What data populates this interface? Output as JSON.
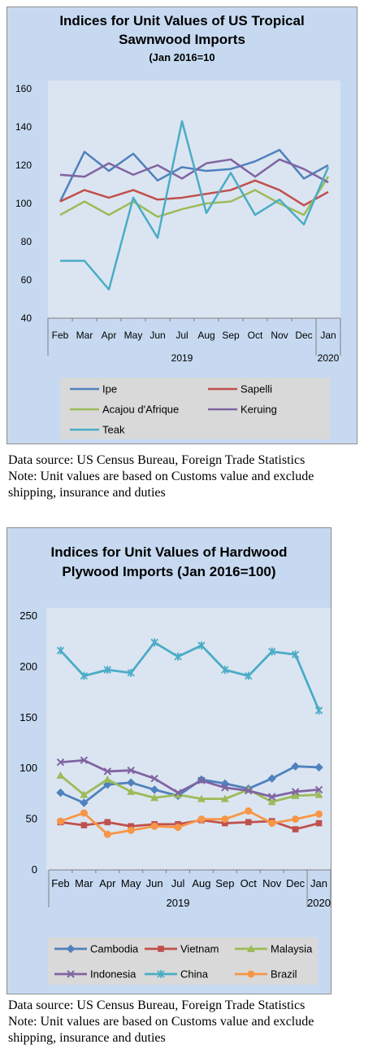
{
  "chart_data": [
    {
      "type": "line",
      "title": "Indices for Unit Values of US Tropical Sawnwood Imports",
      "subtitle": "(Jan 2016=10",
      "categories": [
        "Feb",
        "Mar",
        "Apr",
        "May",
        "Jun",
        "Jul",
        "Aug",
        "Sep",
        "Oct",
        "Nov",
        "Dec",
        "Jan"
      ],
      "year_labels": [
        "2019",
        "2020"
      ],
      "ylim": [
        40,
        160
      ],
      "yticks": [
        40,
        60,
        80,
        100,
        120,
        140,
        160
      ],
      "grid": false,
      "legend_position": "bottom",
      "series": [
        {
          "name": "Ipe",
          "color": "#4f81bd",
          "marker": "none",
          "values": [
            101,
            127,
            117,
            126,
            112,
            119,
            117,
            118,
            122,
            128,
            113,
            120
          ]
        },
        {
          "name": "Sapelli",
          "color": "#c0504d",
          "marker": "none",
          "values": [
            101,
            107,
            103,
            107,
            102,
            103,
            105,
            107,
            112,
            107,
            99,
            106
          ]
        },
        {
          "name": "Acajou d'Afrique",
          "color": "#9bbb59",
          "marker": "none",
          "values": [
            94,
            101,
            94,
            101,
            93,
            97,
            100,
            101,
            107,
            100,
            94,
            114
          ]
        },
        {
          "name": "Keruing",
          "color": "#8064a2",
          "marker": "none",
          "values": [
            115,
            114,
            121,
            115,
            120,
            113,
            121,
            123,
            114,
            123,
            118,
            111
          ]
        },
        {
          "name": "Teak",
          "color": "#4bacc6",
          "marker": "none",
          "values": [
            70,
            70,
            55,
            103,
            82,
            143,
            95,
            116,
            94,
            102,
            89,
            119
          ]
        }
      ]
    },
    {
      "type": "line",
      "title": "Indices for Unit Values of Hardwood Plywood Imports (Jan 2016=100)",
      "categories": [
        "Feb",
        "Mar",
        "Apr",
        "May",
        "Jun",
        "Jul",
        "Aug",
        "Sep",
        "Oct",
        "Nov",
        "Dec",
        "Jan"
      ],
      "year_labels": [
        "2019",
        "2020"
      ],
      "ylim": [
        0,
        250
      ],
      "yticks": [
        0,
        50,
        100,
        150,
        200,
        250
      ],
      "grid": false,
      "legend_position": "bottom",
      "series": [
        {
          "name": "Cambodia",
          "color": "#4f81bd",
          "marker": "diamond",
          "values": [
            76,
            66,
            84,
            86,
            79,
            73,
            89,
            85,
            80,
            90,
            102,
            101
          ]
        },
        {
          "name": "Vietnam",
          "color": "#c0504d",
          "marker": "square",
          "values": [
            47,
            44,
            47,
            43,
            45,
            45,
            49,
            46,
            47,
            48,
            40,
            46
          ]
        },
        {
          "name": "Malaysia",
          "color": "#9bbb59",
          "marker": "triangle",
          "values": [
            93,
            74,
            89,
            77,
            71,
            74,
            70,
            70,
            79,
            67,
            73,
            74
          ]
        },
        {
          "name": "Indonesia",
          "color": "#8064a2",
          "marker": "x",
          "values": [
            106,
            108,
            97,
            98,
            90,
            76,
            88,
            81,
            78,
            72,
            77,
            79
          ]
        },
        {
          "name": "China",
          "color": "#4bacc6",
          "marker": "star",
          "values": [
            216,
            191,
            197,
            194,
            224,
            210,
            221,
            197,
            191,
            215,
            212,
            157
          ]
        },
        {
          "name": "Brazil",
          "color": "#f79646",
          "marker": "circle",
          "values": [
            48,
            56,
            35,
            39,
            43,
            42,
            50,
            50,
            58,
            46,
            50,
            55
          ]
        }
      ]
    }
  ],
  "notes": {
    "source": "Data source: US Census Bureau, Foreign Trade Statistics",
    "note_line1": "Note: Unit values are based on Customs value and exclude",
    "note_line2": "shipping, insurance and duties"
  },
  "titles": {
    "chart1_line1": "Indices for Unit Values of US Tropical",
    "chart1_line2": "Sawnwood Imports",
    "chart1_sub": "(Jan 2016=10",
    "chart2_line1": "Indices for Unit Values of Hardwood",
    "chart2_line2": "Plywood Imports (Jan 2016=100)"
  }
}
